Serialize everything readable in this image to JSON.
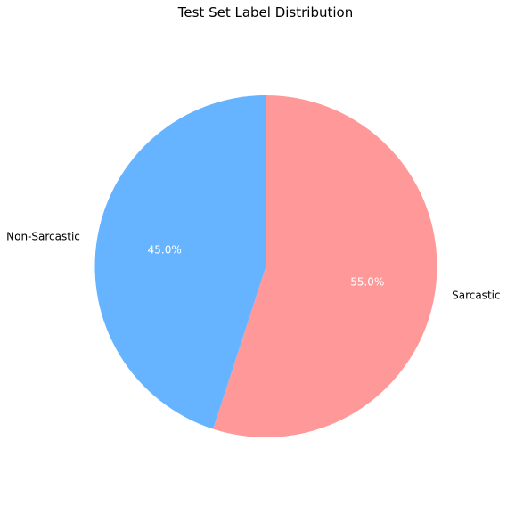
{
  "chart_data": {
    "type": "pie",
    "title": "Test Set Label Distribution",
    "start_angle_deg": 90,
    "direction": "clockwise",
    "slices": [
      {
        "label": "Sarcastic",
        "value": 55.0,
        "pct_label": "55.0%",
        "color": "#ff9999"
      },
      {
        "label": "Non-Sarcastic",
        "value": 45.0,
        "pct_label": "45.0%",
        "color": "#66b3ff"
      }
    ]
  }
}
